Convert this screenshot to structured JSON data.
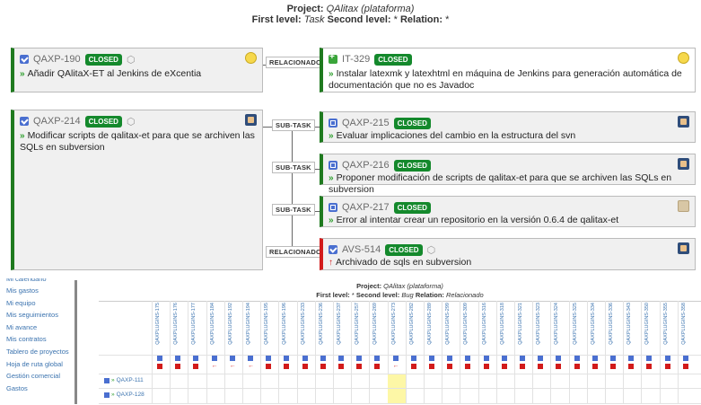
{
  "header": {
    "project_label": "Project:",
    "project_name": "QAlitax (plataforma)",
    "first_level_label": "First level:",
    "first_level_value": "Task",
    "second_level_label": "Second level:",
    "second_level_value": "*",
    "relation_label": "Relation:",
    "relation_value": "*"
  },
  "cards": {
    "qaxp190": {
      "key": "QAXP-190",
      "status": "CLOSED",
      "summary": "Añadir QAlitaX-ET al Jenkins de eXcentia"
    },
    "it329": {
      "key": "IT-329",
      "status": "CLOSED",
      "summary": "Instalar latexmk y latexhtml en máquina de Jenkins para generación automática de documentación que no es Javadoc"
    },
    "qaxp214": {
      "key": "QAXP-214",
      "status": "CLOSED",
      "summary": "Modificar scripts de qalitax-et para que se archiven las SQLs en subversion"
    },
    "qaxp215": {
      "key": "QAXP-215",
      "status": "CLOSED",
      "summary": "Evaluar implicaciones del cambio en la estructura del svn"
    },
    "qaxp216": {
      "key": "QAXP-216",
      "status": "CLOSED",
      "summary": "Proponer modificación de scripts de qalitax-et para que se archiven las SQLs en subversion"
    },
    "qaxp217": {
      "key": "QAXP-217",
      "status": "CLOSED",
      "summary": "Error al intentar crear un repositorio en la versión 0.6.4 de qalitax-et"
    },
    "avs514": {
      "key": "AVS-514",
      "status": "CLOSED",
      "summary": "Archivado de sqls en subversion"
    }
  },
  "relations": {
    "r1": "RELACIONADO",
    "r2": "SUB-TASK",
    "r3": "SUB-TASK",
    "r4": "SUB-TASK",
    "r5": "RELACIONADO"
  },
  "sidebar": {
    "items": [
      "Mi calendario",
      "Mis gastos",
      "Mi equipo",
      "Mis seguimientos",
      "Mi avance",
      "Mis contratos",
      "Tablero de proyectos",
      "Hoja de ruta global",
      "Gestión comercial",
      "Gastos"
    ]
  },
  "matrix": {
    "project_label": "Project:",
    "project_name": "QAlitax (plataforma)",
    "first_level_label": "First level:",
    "first_level_value": "*",
    "second_level_label": "Second level:",
    "second_level_value": "Bug",
    "relation_label": "Relation:",
    "relation_value": "Relacionado",
    "columns": [
      "QAXPLUGINS-175",
      "QAXPLUGINS-176",
      "QAXPLUGINS-177",
      "QAXPLUGINS-184",
      "QAXPLUGINS-192",
      "QAXPLUGINS-194",
      "QAXPLUGINS-195",
      "QAXPLUGINS-196",
      "QAXPLUGINS-233",
      "QAXPLUGINS-236",
      "QAXPLUGINS-237",
      "QAXPLUGINS-257",
      "QAXPLUGINS-269",
      "QAXPLUGINS-273",
      "QAXPLUGINS-282",
      "QAXPLUGINS-289",
      "QAXPLUGINS-299",
      "QAXPLUGINS-309",
      "QAXPLUGINS-316",
      "QAXPLUGINS-318",
      "QAXPLUGINS-321",
      "QAXPLUGINS-323",
      "QAXPLUGINS-324",
      "QAXPLUGINS-325",
      "QAXPLUGINS-334",
      "QAXPLUGINS-336",
      "QAXPLUGINS-343",
      "QAXPLUGINS-350",
      "QAXPLUGINS-355",
      "QAXPLUGINS-358"
    ],
    "rows": [
      "QAXP-111",
      "QAXP-128"
    ]
  }
}
